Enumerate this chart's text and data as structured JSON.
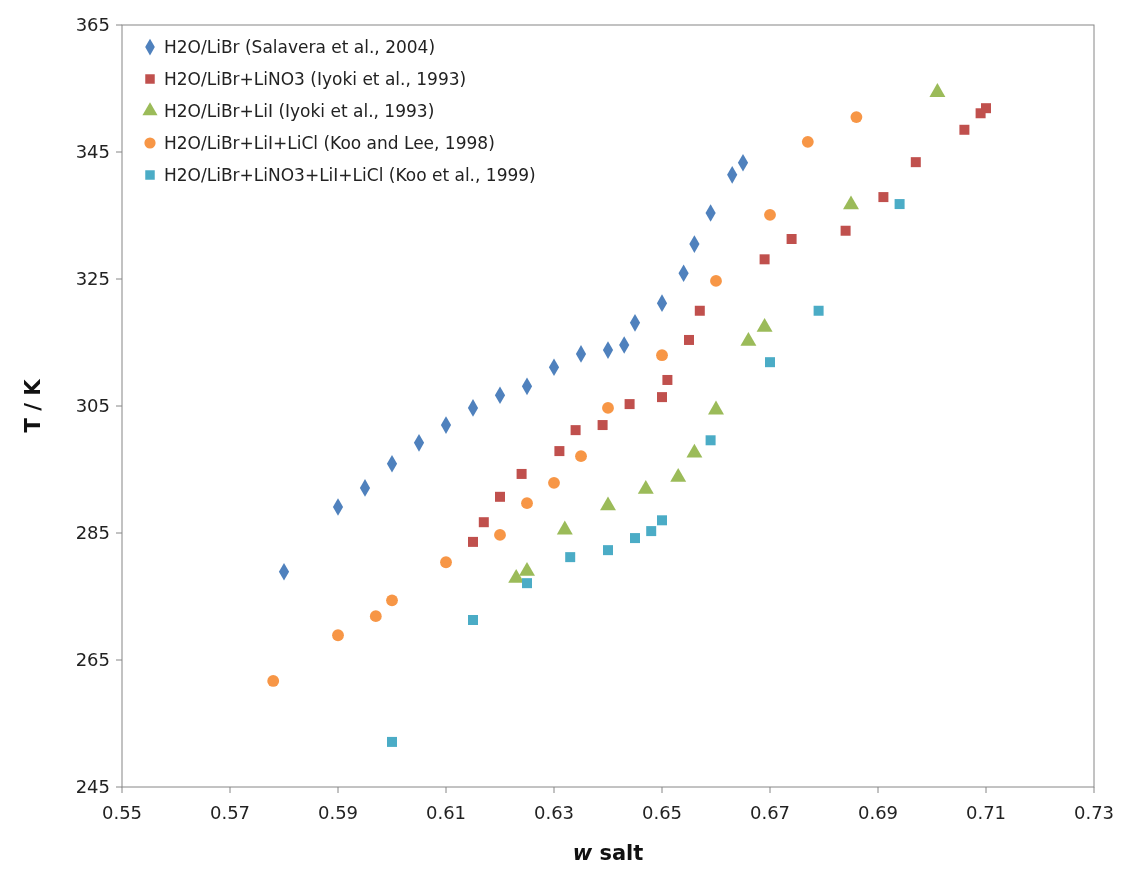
{
  "chart_data": {
    "type": "scatter",
    "xlabel": "w salt",
    "ylabel": "T / K",
    "xlim": [
      0.55,
      0.73
    ],
    "xticks": [
      {
        "value": 0.55,
        "label": "0.55"
      },
      {
        "value": 0.57,
        "label": "0.57"
      },
      {
        "value": 0.59,
        "label": "0.59"
      },
      {
        "value": 0.61,
        "label": "0.61"
      },
      {
        "value": 0.63,
        "label": "0.63"
      },
      {
        "value": 0.65,
        "label": "0.65"
      },
      {
        "value": 0.67,
        "label": "0.67"
      },
      {
        "value": 0.69,
        "label": "0.69"
      },
      {
        "value": 0.71,
        "label": "0.71"
      },
      {
        "value": 0.73,
        "label": "0.73"
      }
    ],
    "ylim": [
      245,
      365
    ],
    "yticks": [
      245,
      265,
      285,
      305,
      325,
      345,
      365
    ],
    "grid": false,
    "legend": "top left",
    "series": [
      {
        "name": "H2O/LiBr (Salavera et al., 2004)",
        "color": "#4f81bd",
        "marker": "diamond",
        "x": [
          0.58,
          0.59,
          0.595,
          0.6,
          0.605,
          0.61,
          0.615,
          0.62,
          0.625,
          0.63,
          0.635,
          0.64,
          0.643,
          0.645,
          0.65,
          0.654,
          0.656,
          0.659,
          0.663,
          0.665
        ],
        "values": [
          278.9,
          289.1,
          292.1,
          295.9,
          299.2,
          302.0,
          304.7,
          306.7,
          308.1,
          311.1,
          313.2,
          313.8,
          314.6,
          318.1,
          321.2,
          325.9,
          330.5,
          335.4,
          341.4,
          343.3
        ]
      },
      {
        "name": "H2O/LiBr+LiNO3 (Iyoki et al., 1993)",
        "color": "#c0504d",
        "marker": "square",
        "x": [
          0.615,
          0.617,
          0.62,
          0.624,
          0.631,
          0.634,
          0.639,
          0.644,
          0.65,
          0.651,
          0.655,
          0.657,
          0.669,
          0.674,
          0.684,
          0.691,
          0.697,
          0.706,
          0.709,
          0.71
        ],
        "values": [
          283.6,
          286.7,
          290.7,
          294.3,
          297.9,
          301.2,
          302.0,
          305.3,
          306.4,
          309.1,
          315.4,
          320.0,
          328.1,
          331.3,
          332.6,
          337.9,
          343.4,
          348.5,
          351.1,
          351.9
        ]
      },
      {
        "name": "H2O/LiBr+LiI (Iyoki et al., 1993)",
        "color": "#9bbb59",
        "marker": "triangle",
        "x": [
          0.623,
          0.625,
          0.632,
          0.64,
          0.647,
          0.653,
          0.656,
          0.66,
          0.666,
          0.669,
          0.685,
          0.701
        ],
        "values": [
          277.9,
          279.0,
          285.5,
          289.3,
          291.9,
          293.8,
          297.6,
          304.4,
          315.2,
          317.4,
          336.7,
          354.4
        ]
      },
      {
        "name": "H2O/LiBr+LiI+LiCl (Koo and Lee, 1998)",
        "color": "#f79646",
        "marker": "circle",
        "x": [
          0.578,
          0.59,
          0.597,
          0.6,
          0.61,
          0.62,
          0.625,
          0.63,
          0.635,
          0.64,
          0.65,
          0.66,
          0.67,
          0.677,
          0.686
        ],
        "values": [
          261.7,
          268.9,
          271.9,
          274.4,
          280.4,
          284.7,
          289.7,
          292.9,
          297.1,
          304.7,
          313.0,
          324.7,
          335.1,
          346.6,
          350.5
        ]
      },
      {
        "name": "H2O/LiBr+LiNO3+LiI+LiCl (Koo et al., 1999)",
        "color": "#4bacc6",
        "marker": "square",
        "x": [
          0.6,
          0.615,
          0.625,
          0.633,
          0.64,
          0.645,
          0.648,
          0.65,
          0.659,
          0.67,
          0.679,
          0.694
        ],
        "values": [
          252.1,
          271.3,
          277.1,
          281.2,
          282.3,
          284.2,
          285.3,
          287.0,
          299.6,
          311.9,
          320.0,
          336.8
        ]
      }
    ]
  }
}
